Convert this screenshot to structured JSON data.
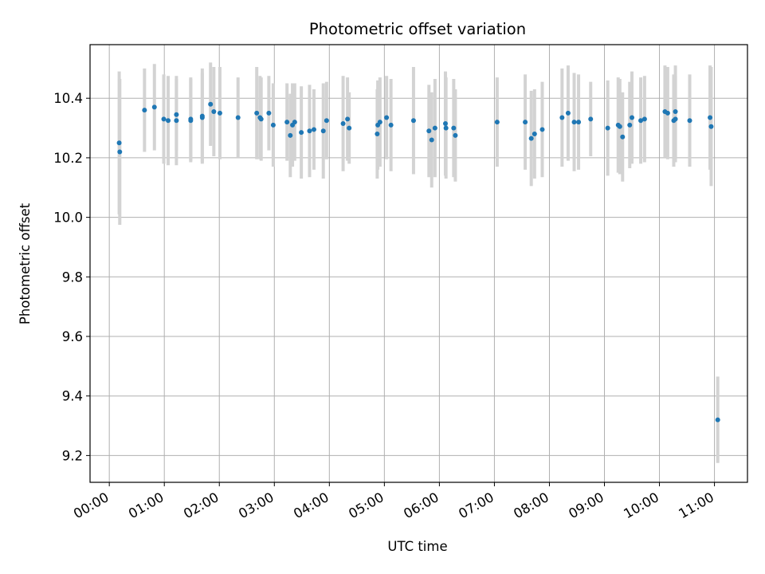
{
  "chart_data": {
    "type": "scatter",
    "title": "Photometric offset variation",
    "xlabel": "UTC time",
    "ylabel": "Photometric offset",
    "x_unit": "hours UTC",
    "xlim": [
      -0.35,
      11.6
    ],
    "ylim": [
      9.11,
      10.58
    ],
    "x_ticks": [
      0,
      1,
      2,
      3,
      4,
      5,
      6,
      7,
      8,
      9,
      10,
      11
    ],
    "x_tick_labels": [
      "00:00",
      "01:00",
      "02:00",
      "03:00",
      "04:00",
      "05:00",
      "06:00",
      "07:00",
      "08:00",
      "09:00",
      "10:00",
      "11:00"
    ],
    "y_ticks": [
      9.2,
      9.4,
      9.6,
      9.8,
      10.0,
      10.2,
      10.4
    ],
    "y_tick_labels": [
      "9.2",
      "9.4",
      "9.6",
      "9.8",
      "10.0",
      "10.2",
      "10.4"
    ],
    "grid": true,
    "marker_color": "#1f77b4",
    "errorbar_color": "#d3d3d3",
    "series": [
      {
        "points": [
          [
            0.18,
            10.25,
            0.24
          ],
          [
            0.19,
            10.22,
            0.245
          ],
          [
            0.64,
            10.36,
            0.14
          ],
          [
            0.82,
            10.37,
            0.145
          ],
          [
            0.99,
            10.33,
            0.15
          ],
          [
            1.07,
            10.325,
            0.15
          ],
          [
            1.22,
            10.345,
            0.12
          ],
          [
            1.22,
            10.325,
            0.15
          ],
          [
            1.48,
            10.33,
            0.14
          ],
          [
            1.48,
            10.325,
            0.14
          ],
          [
            1.69,
            10.34,
            0.16
          ],
          [
            1.69,
            10.335,
            0.15
          ],
          [
            1.84,
            10.38,
            0.14
          ],
          [
            1.9,
            10.355,
            0.15
          ],
          [
            2.01,
            10.35,
            0.155
          ],
          [
            2.34,
            10.335,
            0.135
          ],
          [
            2.68,
            10.35,
            0.155
          ],
          [
            2.74,
            10.335,
            0.14
          ],
          [
            2.76,
            10.33,
            0.14
          ],
          [
            2.9,
            10.35,
            0.125
          ],
          [
            2.98,
            10.31,
            0.14
          ],
          [
            3.23,
            10.32,
            0.13
          ],
          [
            3.29,
            10.275,
            0.14
          ],
          [
            3.33,
            10.31,
            0.14
          ],
          [
            3.37,
            10.32,
            0.13
          ],
          [
            3.49,
            10.285,
            0.155
          ],
          [
            3.64,
            10.29,
            0.155
          ],
          [
            3.72,
            10.295,
            0.135
          ],
          [
            3.89,
            10.29,
            0.16
          ],
          [
            3.95,
            10.325,
            0.13
          ],
          [
            4.25,
            10.315,
            0.16
          ],
          [
            4.33,
            10.33,
            0.14
          ],
          [
            4.36,
            10.3,
            0.12
          ],
          [
            4.87,
            10.28,
            0.15
          ],
          [
            4.88,
            10.31,
            0.15
          ],
          [
            4.92,
            10.32,
            0.15
          ],
          [
            5.04,
            10.335,
            0.14
          ],
          [
            5.12,
            10.31,
            0.155
          ],
          [
            5.53,
            10.325,
            0.18
          ],
          [
            5.81,
            10.29,
            0.155
          ],
          [
            5.86,
            10.26,
            0.16
          ],
          [
            5.92,
            10.3,
            0.165
          ],
          [
            6.11,
            10.315,
            0.175
          ],
          [
            6.12,
            10.3,
            0.17
          ],
          [
            6.26,
            10.3,
            0.165
          ],
          [
            6.29,
            10.275,
            0.155
          ],
          [
            7.05,
            10.32,
            0.15
          ],
          [
            7.56,
            10.32,
            0.16
          ],
          [
            7.67,
            10.265,
            0.16
          ],
          [
            7.73,
            10.28,
            0.15
          ],
          [
            7.87,
            10.295,
            0.16
          ],
          [
            8.23,
            10.335,
            0.165
          ],
          [
            8.34,
            10.35,
            0.16
          ],
          [
            8.45,
            10.32,
            0.165
          ],
          [
            8.53,
            10.32,
            0.16
          ],
          [
            8.75,
            10.33,
            0.125
          ],
          [
            9.06,
            10.3,
            0.16
          ],
          [
            9.25,
            10.31,
            0.16
          ],
          [
            9.28,
            10.305,
            0.16
          ],
          [
            9.33,
            10.27,
            0.15
          ],
          [
            9.46,
            10.31,
            0.145
          ],
          [
            9.5,
            10.335,
            0.155
          ],
          [
            9.66,
            10.325,
            0.145
          ],
          [
            9.73,
            10.33,
            0.145
          ],
          [
            10.1,
            10.355,
            0.155
          ],
          [
            10.15,
            10.35,
            0.155
          ],
          [
            10.26,
            10.325,
            0.155
          ],
          [
            10.29,
            10.33,
            0.145
          ],
          [
            10.29,
            10.355,
            0.155
          ],
          [
            10.55,
            10.325,
            0.155
          ],
          [
            10.92,
            10.335,
            0.175
          ],
          [
            10.94,
            10.305,
            0.2
          ],
          [
            11.06,
            9.32,
            0.145
          ]
        ]
      }
    ]
  }
}
